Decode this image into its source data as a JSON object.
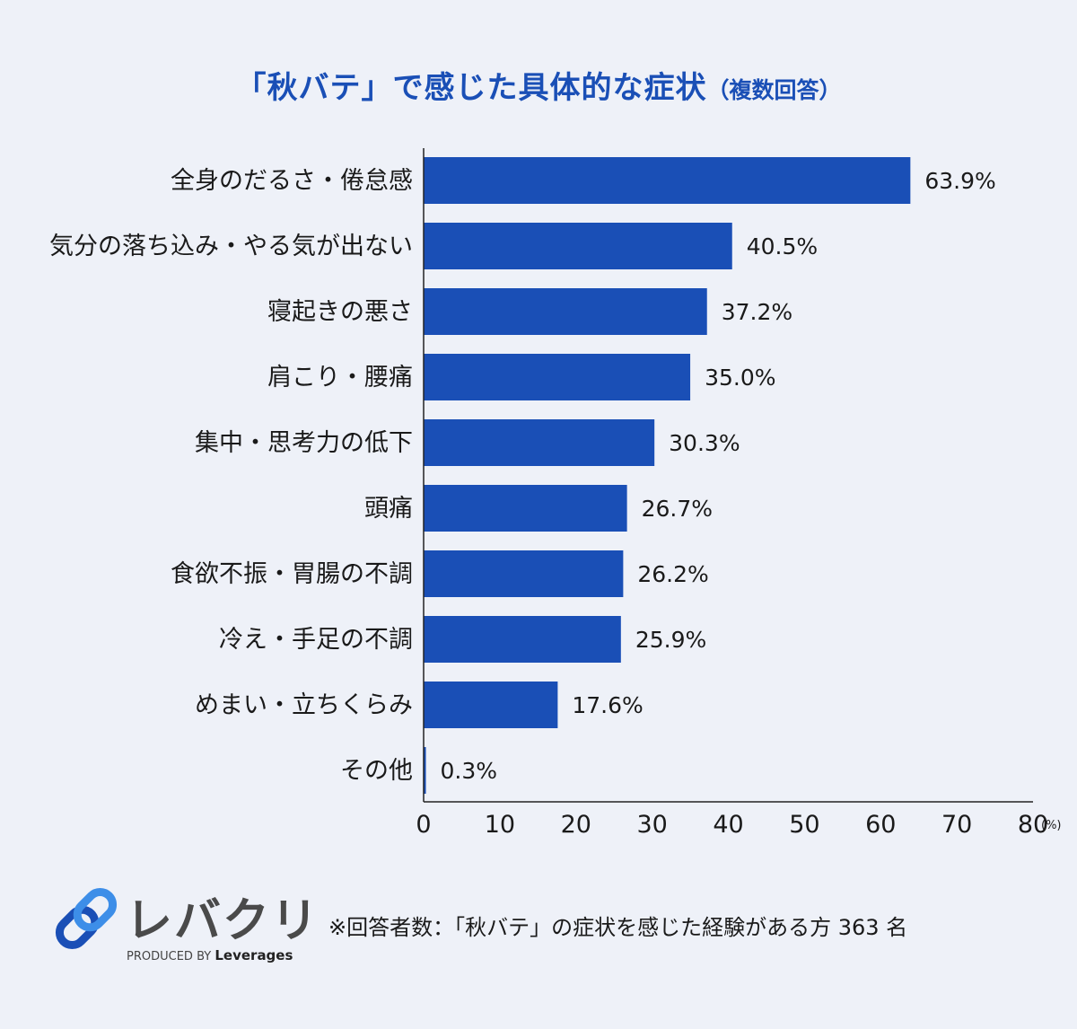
{
  "title": {
    "main": "「秋バテ」で感じた具体的な症状",
    "sub": "（複数回答）"
  },
  "chart_data": {
    "type": "bar",
    "orientation": "horizontal",
    "categories": [
      "全身のだるさ・倦怠感",
      "気分の落ち込み・やる気が出ない",
      "寝起きの悪さ",
      "肩こり・腰痛",
      "集中・思考力の低下",
      "頭痛",
      "食欲不振・胃腸の不調",
      "冷え・手足の不調",
      "めまい・立ちくらみ",
      "その他"
    ],
    "values": [
      63.9,
      40.5,
      37.2,
      35.0,
      30.3,
      26.7,
      26.2,
      25.9,
      17.6,
      0.3
    ],
    "value_labels": [
      "63.9%",
      "40.5%",
      "37.2%",
      "35.0%",
      "30.3%",
      "26.7%",
      "26.2%",
      "25.9%",
      "17.6%",
      "0.3%"
    ],
    "xlim": [
      0,
      80
    ],
    "xticks": [
      0,
      10,
      20,
      30,
      40,
      50,
      60,
      70,
      80
    ],
    "x_unit": "(%)",
    "bar_color": "#1a4fb6",
    "grid": false
  },
  "logo": {
    "name": "レバクリ",
    "produced_by": "PRODUCED BY",
    "brand": "Leverages",
    "colors": [
      "#1a4fb6",
      "#3d8ee8"
    ]
  },
  "note": "※回答者数：「秋バテ」の症状を感じた経験がある方 363 名"
}
